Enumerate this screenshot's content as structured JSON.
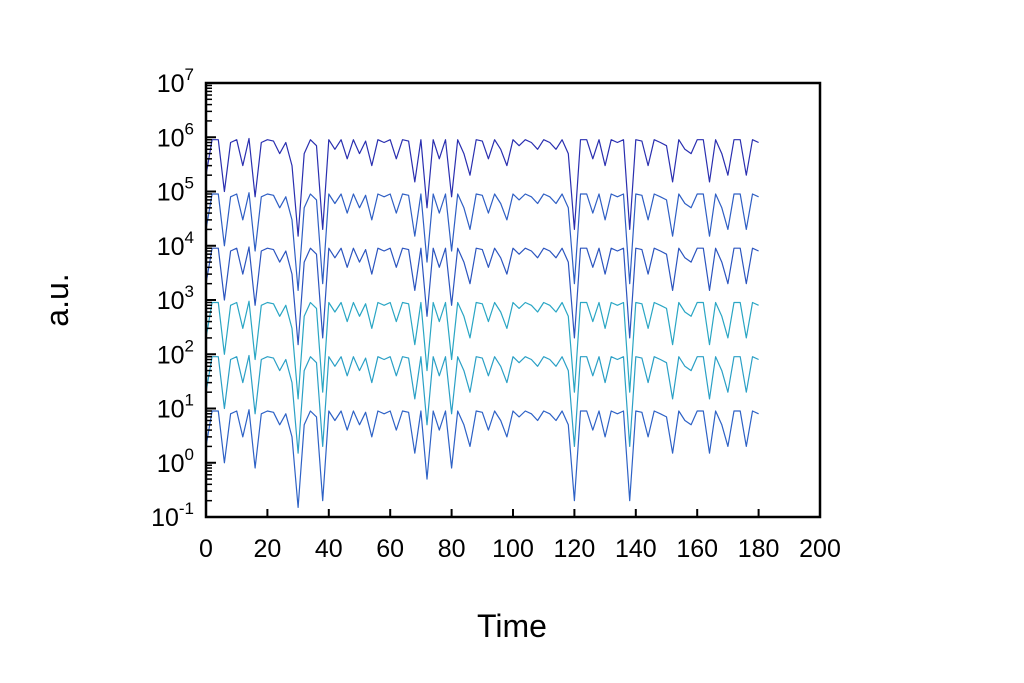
{
  "chart_data": {
    "type": "line",
    "title": "",
    "xlabel": "Time",
    "ylabel": "a.u.",
    "xlim": [
      0,
      200
    ],
    "ylim": [
      0.1,
      10000000
    ],
    "yscale": "log",
    "grid": false,
    "legend": "none",
    "x_ticks": [
      "0",
      "20",
      "40",
      "60",
      "80",
      "100",
      "120",
      "140",
      "160",
      "180",
      "200"
    ],
    "y_ticks": [
      {
        "base": "10",
        "exp": "-1"
      },
      {
        "base": "10",
        "exp": "0"
      },
      {
        "base": "10",
        "exp": "1"
      },
      {
        "base": "10",
        "exp": "2"
      },
      {
        "base": "10",
        "exp": "3"
      },
      {
        "base": "10",
        "exp": "4"
      },
      {
        "base": "10",
        "exp": "5"
      },
      {
        "base": "10",
        "exp": "6"
      },
      {
        "base": "10",
        "exp": "7"
      }
    ],
    "shape_note_free": true,
    "time": [
      0,
      2,
      4,
      6,
      8,
      10,
      12,
      14,
      16,
      18,
      20,
      22,
      24,
      26,
      28,
      30,
      32,
      34,
      36,
      38,
      40,
      42,
      44,
      46,
      48,
      50,
      52,
      54,
      56,
      58,
      60,
      62,
      64,
      66,
      68,
      70,
      72,
      74,
      76,
      78,
      80,
      82,
      84,
      86,
      88,
      90,
      92,
      94,
      96,
      98,
      100,
      102,
      104,
      106,
      108,
      110,
      112,
      114,
      116,
      118,
      120,
      122,
      124,
      126,
      128,
      130,
      132,
      134,
      136,
      138,
      140,
      142,
      144,
      146,
      148,
      150,
      152,
      154,
      156,
      158,
      160,
      162,
      164,
      166,
      168,
      170,
      172,
      174,
      176,
      178,
      180
    ],
    "series": [
      {
        "color": "#2a2fb0",
        "scale": 1000000,
        "values": [
          0.2,
          0.9,
          0.9,
          0.1,
          0.8,
          0.9,
          0.3,
          0.95,
          0.08,
          0.8,
          0.9,
          0.85,
          0.5,
          0.8,
          0.3,
          0.015,
          0.5,
          0.9,
          0.7,
          0.02,
          0.9,
          0.6,
          0.9,
          0.4,
          0.9,
          0.5,
          0.85,
          0.3,
          0.9,
          0.8,
          0.9,
          0.4,
          0.9,
          0.85,
          0.15,
          0.9,
          0.05,
          0.9,
          0.4,
          0.9,
          0.08,
          0.9,
          0.5,
          0.2,
          0.9,
          0.85,
          0.4,
          0.9,
          0.6,
          0.3,
          0.9,
          0.7,
          0.9,
          0.8,
          0.6,
          0.9,
          0.8,
          0.6,
          0.9,
          0.5,
          0.02,
          0.9,
          0.9,
          0.4,
          0.9,
          0.3,
          0.9,
          0.8,
          0.9,
          0.02,
          0.9,
          0.85,
          0.3,
          0.9,
          0.8,
          0.7,
          0.15,
          0.9,
          0.6,
          0.5,
          0.9,
          0.9,
          0.15,
          0.9,
          0.5,
          0.2,
          0.9,
          0.9,
          0.2,
          0.9,
          0.8
        ]
      },
      {
        "color": "#2f5fc4",
        "scale": 100000,
        "values": [
          0.2,
          0.9,
          0.9,
          0.1,
          0.8,
          0.9,
          0.3,
          0.95,
          0.08,
          0.8,
          0.9,
          0.85,
          0.5,
          0.8,
          0.3,
          0.015,
          0.5,
          0.9,
          0.7,
          0.02,
          0.9,
          0.6,
          0.9,
          0.4,
          0.9,
          0.5,
          0.85,
          0.3,
          0.9,
          0.8,
          0.9,
          0.4,
          0.9,
          0.85,
          0.15,
          0.9,
          0.05,
          0.9,
          0.4,
          0.9,
          0.08,
          0.9,
          0.5,
          0.2,
          0.9,
          0.85,
          0.4,
          0.9,
          0.6,
          0.3,
          0.9,
          0.7,
          0.9,
          0.8,
          0.6,
          0.9,
          0.8,
          0.6,
          0.9,
          0.5,
          0.02,
          0.9,
          0.9,
          0.4,
          0.9,
          0.3,
          0.9,
          0.8,
          0.9,
          0.02,
          0.9,
          0.85,
          0.3,
          0.9,
          0.8,
          0.7,
          0.15,
          0.9,
          0.6,
          0.5,
          0.9,
          0.9,
          0.15,
          0.9,
          0.5,
          0.2,
          0.9,
          0.9,
          0.2,
          0.9,
          0.8
        ]
      },
      {
        "color": "#2c55bf",
        "scale": 10000,
        "values": [
          0.2,
          0.9,
          0.9,
          0.1,
          0.8,
          0.9,
          0.3,
          0.95,
          0.08,
          0.8,
          0.9,
          0.85,
          0.5,
          0.8,
          0.3,
          0.015,
          0.5,
          0.9,
          0.7,
          0.02,
          0.9,
          0.6,
          0.9,
          0.4,
          0.9,
          0.5,
          0.85,
          0.3,
          0.9,
          0.8,
          0.9,
          0.4,
          0.9,
          0.85,
          0.15,
          0.9,
          0.05,
          0.9,
          0.4,
          0.9,
          0.08,
          0.9,
          0.5,
          0.2,
          0.9,
          0.85,
          0.4,
          0.9,
          0.6,
          0.3,
          0.9,
          0.7,
          0.9,
          0.8,
          0.6,
          0.9,
          0.8,
          0.6,
          0.9,
          0.5,
          0.02,
          0.9,
          0.9,
          0.4,
          0.9,
          0.3,
          0.9,
          0.8,
          0.9,
          0.02,
          0.9,
          0.85,
          0.3,
          0.9,
          0.8,
          0.7,
          0.15,
          0.9,
          0.6,
          0.5,
          0.9,
          0.9,
          0.15,
          0.9,
          0.5,
          0.2,
          0.9,
          0.9,
          0.2,
          0.9,
          0.8
        ]
      },
      {
        "color": "#2aa6c4",
        "scale": 1000,
        "values": [
          0.2,
          0.9,
          0.9,
          0.1,
          0.8,
          0.9,
          0.3,
          0.95,
          0.08,
          0.8,
          0.9,
          0.85,
          0.5,
          0.8,
          0.3,
          0.015,
          0.5,
          0.9,
          0.7,
          0.02,
          0.9,
          0.6,
          0.9,
          0.4,
          0.9,
          0.5,
          0.85,
          0.3,
          0.9,
          0.8,
          0.9,
          0.4,
          0.9,
          0.85,
          0.15,
          0.9,
          0.05,
          0.9,
          0.4,
          0.9,
          0.08,
          0.9,
          0.5,
          0.2,
          0.9,
          0.85,
          0.4,
          0.9,
          0.6,
          0.3,
          0.9,
          0.7,
          0.9,
          0.8,
          0.6,
          0.9,
          0.8,
          0.6,
          0.9,
          0.5,
          0.02,
          0.9,
          0.9,
          0.4,
          0.9,
          0.3,
          0.9,
          0.8,
          0.9,
          0.02,
          0.9,
          0.85,
          0.3,
          0.9,
          0.8,
          0.7,
          0.15,
          0.9,
          0.6,
          0.5,
          0.9,
          0.9,
          0.15,
          0.9,
          0.5,
          0.2,
          0.9,
          0.9,
          0.2,
          0.9,
          0.8
        ]
      },
      {
        "color": "#2ba0c6",
        "scale": 100,
        "values": [
          0.2,
          0.9,
          0.9,
          0.1,
          0.8,
          0.9,
          0.3,
          0.95,
          0.08,
          0.8,
          0.9,
          0.85,
          0.5,
          0.8,
          0.3,
          0.015,
          0.5,
          0.9,
          0.7,
          0.02,
          0.9,
          0.6,
          0.9,
          0.4,
          0.9,
          0.5,
          0.85,
          0.3,
          0.9,
          0.8,
          0.9,
          0.4,
          0.9,
          0.85,
          0.15,
          0.9,
          0.05,
          0.9,
          0.4,
          0.9,
          0.08,
          0.9,
          0.5,
          0.2,
          0.9,
          0.85,
          0.4,
          0.9,
          0.6,
          0.3,
          0.9,
          0.7,
          0.9,
          0.8,
          0.6,
          0.9,
          0.8,
          0.6,
          0.9,
          0.5,
          0.02,
          0.9,
          0.9,
          0.4,
          0.9,
          0.3,
          0.9,
          0.8,
          0.9,
          0.02,
          0.9,
          0.85,
          0.3,
          0.9,
          0.8,
          0.7,
          0.15,
          0.9,
          0.6,
          0.5,
          0.9,
          0.9,
          0.15,
          0.9,
          0.5,
          0.2,
          0.9,
          0.9,
          0.2,
          0.9,
          0.8
        ]
      },
      {
        "color": "#2e62c6",
        "scale": 10,
        "values": [
          0.2,
          0.9,
          0.9,
          0.1,
          0.8,
          0.9,
          0.3,
          0.95,
          0.08,
          0.8,
          0.9,
          0.85,
          0.5,
          0.8,
          0.3,
          0.015,
          0.5,
          0.9,
          0.7,
          0.02,
          0.9,
          0.6,
          0.9,
          0.4,
          0.9,
          0.5,
          0.85,
          0.3,
          0.9,
          0.8,
          0.9,
          0.4,
          0.9,
          0.85,
          0.15,
          0.9,
          0.05,
          0.9,
          0.4,
          0.9,
          0.08,
          0.9,
          0.5,
          0.2,
          0.9,
          0.85,
          0.4,
          0.9,
          0.6,
          0.3,
          0.9,
          0.7,
          0.9,
          0.8,
          0.6,
          0.9,
          0.8,
          0.6,
          0.9,
          0.5,
          0.02,
          0.9,
          0.9,
          0.4,
          0.9,
          0.3,
          0.9,
          0.8,
          0.9,
          0.02,
          0.9,
          0.85,
          0.3,
          0.9,
          0.8,
          0.7,
          0.15,
          0.9,
          0.6,
          0.5,
          0.9,
          0.9,
          0.15,
          0.9,
          0.5,
          0.2,
          0.9,
          0.9,
          0.2,
          0.9,
          0.8
        ]
      }
    ]
  }
}
